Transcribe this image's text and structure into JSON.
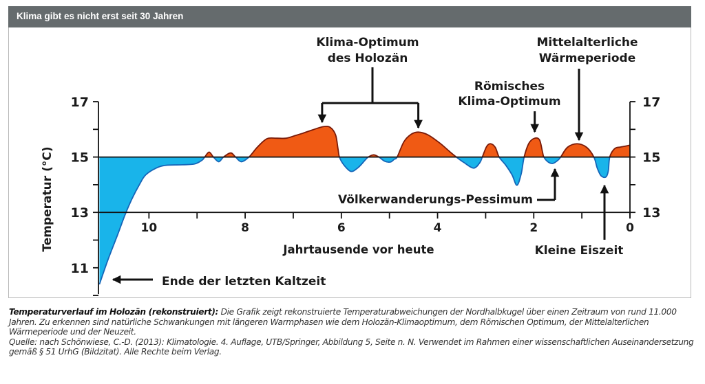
{
  "header": {
    "title": "Klima gibt es nicht erst seit 30 Jahren"
  },
  "chart_data": {
    "type": "area",
    "title": "Klima gibt es nicht erst seit 30 Jahren",
    "xlabel": "Jahrtausende vor heute",
    "ylabel": "Temperatur (°C)",
    "xlim": [
      11.05,
      0
    ],
    "ylim": [
      10.0,
      17.0
    ],
    "baseline": 15,
    "x_ticks": [
      11,
      10,
      9,
      8,
      7,
      6,
      5,
      4,
      3,
      2,
      1,
      0
    ],
    "x_tick_labels": [
      {
        "x": 10,
        "label": "10"
      },
      {
        "x": 8,
        "label": "8"
      },
      {
        "x": 6,
        "label": "6"
      },
      {
        "x": 4,
        "label": "4"
      },
      {
        "x": 2,
        "label": "2"
      },
      {
        "x": 0,
        "label": "0"
      }
    ],
    "y_ticks_left": [
      17,
      16,
      15,
      14,
      13,
      12,
      11,
      10
    ],
    "y_tick_labels_left": [
      "17",
      "15",
      "13",
      "11"
    ],
    "y_ticks_right": [
      17,
      16,
      15,
      14,
      13
    ],
    "y_tick_labels_right": [
      "17",
      "15",
      "13"
    ],
    "colors": {
      "warm": "#f05a14",
      "cold": "#19b4ea",
      "line_warm": "#7a1a08",
      "line_cold": "#1565b8"
    },
    "series": [
      {
        "name": "Temperatur (rekonstruiert)",
        "points": [
          [
            11.03,
            10.4
          ],
          [
            10.85,
            11.3
          ],
          [
            10.65,
            12.2
          ],
          [
            10.5,
            12.9
          ],
          [
            10.35,
            13.5
          ],
          [
            10.2,
            14.0
          ],
          [
            10.07,
            14.35
          ],
          [
            9.85,
            14.6
          ],
          [
            9.65,
            14.7
          ],
          [
            9.3,
            14.72
          ],
          [
            9.05,
            14.75
          ],
          [
            8.9,
            14.88
          ],
          [
            8.84,
            15.0
          ],
          [
            8.75,
            15.18
          ],
          [
            8.66,
            15.0
          ],
          [
            8.55,
            14.83
          ],
          [
            8.45,
            15.0
          ],
          [
            8.3,
            15.15
          ],
          [
            8.2,
            15.0
          ],
          [
            8.08,
            14.83
          ],
          [
            7.92,
            15.0
          ],
          [
            7.75,
            15.35
          ],
          [
            7.55,
            15.66
          ],
          [
            7.35,
            15.68
          ],
          [
            7.15,
            15.68
          ],
          [
            6.95,
            15.78
          ],
          [
            6.8,
            15.86
          ],
          [
            6.6,
            15.98
          ],
          [
            6.37,
            16.1
          ],
          [
            6.23,
            16.07
          ],
          [
            6.12,
            15.8
          ],
          [
            6.07,
            15.3
          ],
          [
            6.04,
            15.0
          ],
          [
            5.95,
            14.72
          ],
          [
            5.8,
            14.48
          ],
          [
            5.65,
            14.62
          ],
          [
            5.5,
            14.9
          ],
          [
            5.44,
            15.0
          ],
          [
            5.33,
            15.08
          ],
          [
            5.22,
            15.0
          ],
          [
            5.1,
            14.85
          ],
          [
            4.98,
            14.82
          ],
          [
            4.9,
            14.92
          ],
          [
            4.84,
            15.0
          ],
          [
            4.7,
            15.55
          ],
          [
            4.55,
            15.82
          ],
          [
            4.4,
            15.9
          ],
          [
            4.2,
            15.8
          ],
          [
            3.95,
            15.5
          ],
          [
            3.75,
            15.2
          ],
          [
            3.61,
            15.0
          ],
          [
            3.45,
            14.8
          ],
          [
            3.25,
            14.6
          ],
          [
            3.12,
            14.8
          ],
          [
            3.07,
            15.0
          ],
          [
            2.98,
            15.38
          ],
          [
            2.9,
            15.48
          ],
          [
            2.8,
            15.35
          ],
          [
            2.72,
            15.0
          ],
          [
            2.58,
            14.7
          ],
          [
            2.45,
            14.35
          ],
          [
            2.35,
            13.98
          ],
          [
            2.26,
            14.4
          ],
          [
            2.2,
            15.0
          ],
          [
            2.1,
            15.5
          ],
          [
            1.98,
            15.68
          ],
          [
            1.88,
            15.62
          ],
          [
            1.82,
            15.2
          ],
          [
            1.79,
            15.0
          ],
          [
            1.7,
            14.82
          ],
          [
            1.6,
            14.77
          ],
          [
            1.5,
            14.88
          ],
          [
            1.44,
            15.0
          ],
          [
            1.3,
            15.35
          ],
          [
            1.1,
            15.48
          ],
          [
            0.9,
            15.35
          ],
          [
            0.75,
            15.0
          ],
          [
            0.68,
            14.6
          ],
          [
            0.6,
            14.32
          ],
          [
            0.5,
            14.28
          ],
          [
            0.45,
            14.5
          ],
          [
            0.42,
            15.0
          ],
          [
            0.32,
            15.3
          ],
          [
            0.2,
            15.36
          ],
          [
            0.08,
            15.4
          ],
          [
            0.0,
            15.43
          ]
        ]
      }
    ],
    "annotations": [
      {
        "id": "holozaen",
        "lines": [
          "Klima-Optimum",
          "des Holozän"
        ],
        "targets": [
          6.4,
          4.4
        ]
      },
      {
        "id": "roemisch",
        "lines": [
          "Römisches",
          "Klima-Optimum"
        ],
        "target": 1.98
      },
      {
        "id": "mittelalter",
        "lines": [
          "Mittelalterliche",
          "Wärmeperiode"
        ],
        "target": 1.1
      },
      {
        "id": "voelker",
        "text": "Völkerwanderungs-Pessimum",
        "target": 1.6
      },
      {
        "id": "eiszeit",
        "text": "Kleine Eiszeit",
        "target": 0.55
      },
      {
        "id": "kaltzeit",
        "text": "Ende der letzten Kaltzeit",
        "target": 11.03
      }
    ]
  },
  "caption": {
    "bold": "Temperaturverlauf im Holozän (rekonstruiert):",
    "text": " Die Grafik zeigt rekonstruierte Temperaturabweichungen der Nordhalbkugel über einen Zeitraum von rund 11.000 Jahren. Zu erkennen sind natürliche Schwankungen mit längeren Warmphasen wie dem Holozän-Klimaoptimum, dem Römischen Optimum, der Mittelalterlichen Wärmeperiode und der Neuzeit.",
    "source": "Quelle: nach Schönwiese, C.-D. (2013): Klimatologie. 4. Auflage, UTB/Springer, Abbildung 5, Seite n. N. Verwendet im Rahmen einer wissenschaftlichen Auseinandersetzung gemäß § 51 UrhG (Bildzitat). Alle Rechte beim Verlag."
  }
}
